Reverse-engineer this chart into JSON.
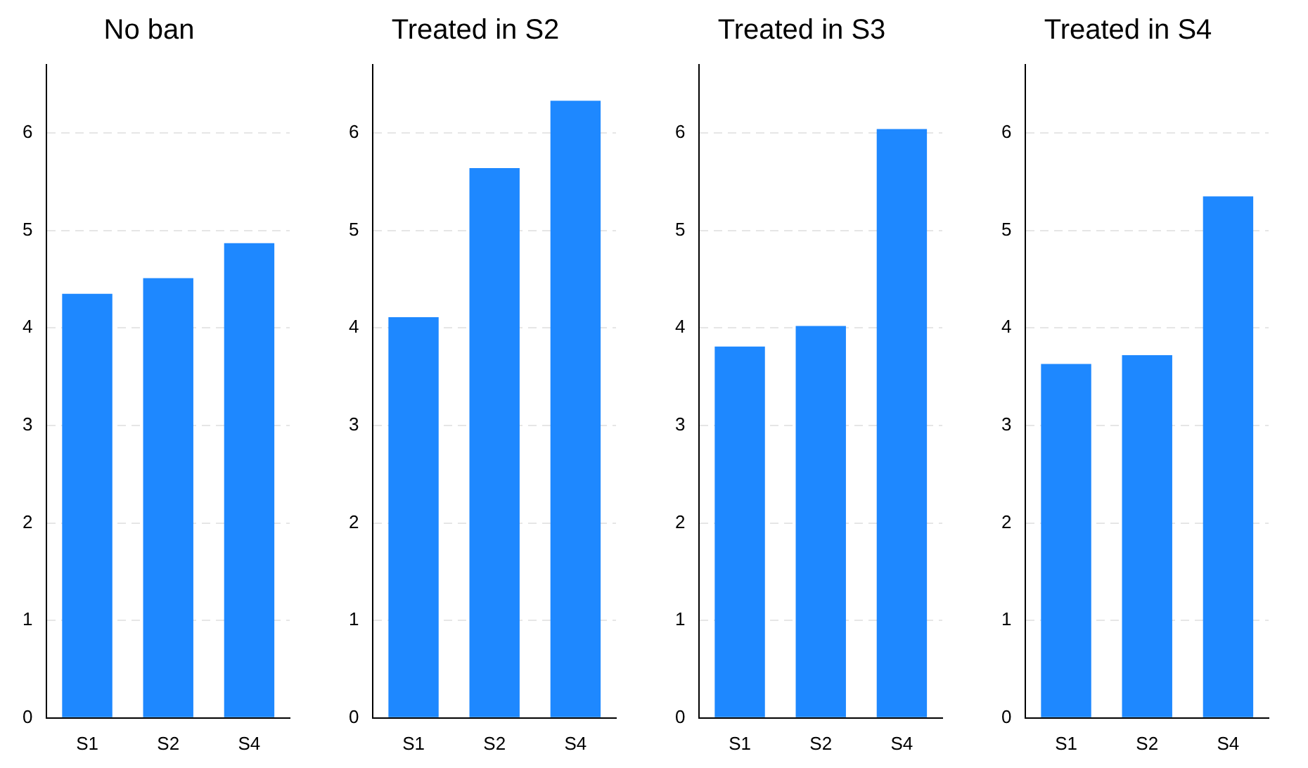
{
  "chart_data": [
    {
      "type": "bar",
      "title": "No ban",
      "categories": [
        "S1",
        "S2",
        "S4"
      ],
      "values": [
        4.35,
        4.51,
        4.87
      ],
      "color": "#1e88ff",
      "ylim": [
        0,
        6.7
      ],
      "yticks": [
        0,
        1,
        2,
        3,
        4,
        5,
        6
      ],
      "grid": "y"
    },
    {
      "type": "bar",
      "title": "Treated in S2",
      "categories": [
        "S1",
        "S2",
        "S4"
      ],
      "values": [
        4.11,
        5.64,
        6.33
      ],
      "color": "#1e88ff",
      "ylim": [
        0,
        6.7
      ],
      "yticks": [
        0,
        1,
        2,
        3,
        4,
        5,
        6
      ],
      "grid": "y"
    },
    {
      "type": "bar",
      "title": "Treated in S3",
      "categories": [
        "S1",
        "S2",
        "S4"
      ],
      "values": [
        3.81,
        4.02,
        6.04
      ],
      "color": "#1e88ff",
      "ylim": [
        0,
        6.7
      ],
      "yticks": [
        0,
        1,
        2,
        3,
        4,
        5,
        6
      ],
      "grid": "y"
    },
    {
      "type": "bar",
      "title": "Treated in S4",
      "categories": [
        "S1",
        "S2",
        "S4"
      ],
      "values": [
        3.63,
        3.72,
        5.35
      ],
      "color": "#1e88ff",
      "ylim": [
        0,
        6.7
      ],
      "yticks": [
        0,
        1,
        2,
        3,
        4,
        5,
        6
      ],
      "grid": "y"
    }
  ]
}
